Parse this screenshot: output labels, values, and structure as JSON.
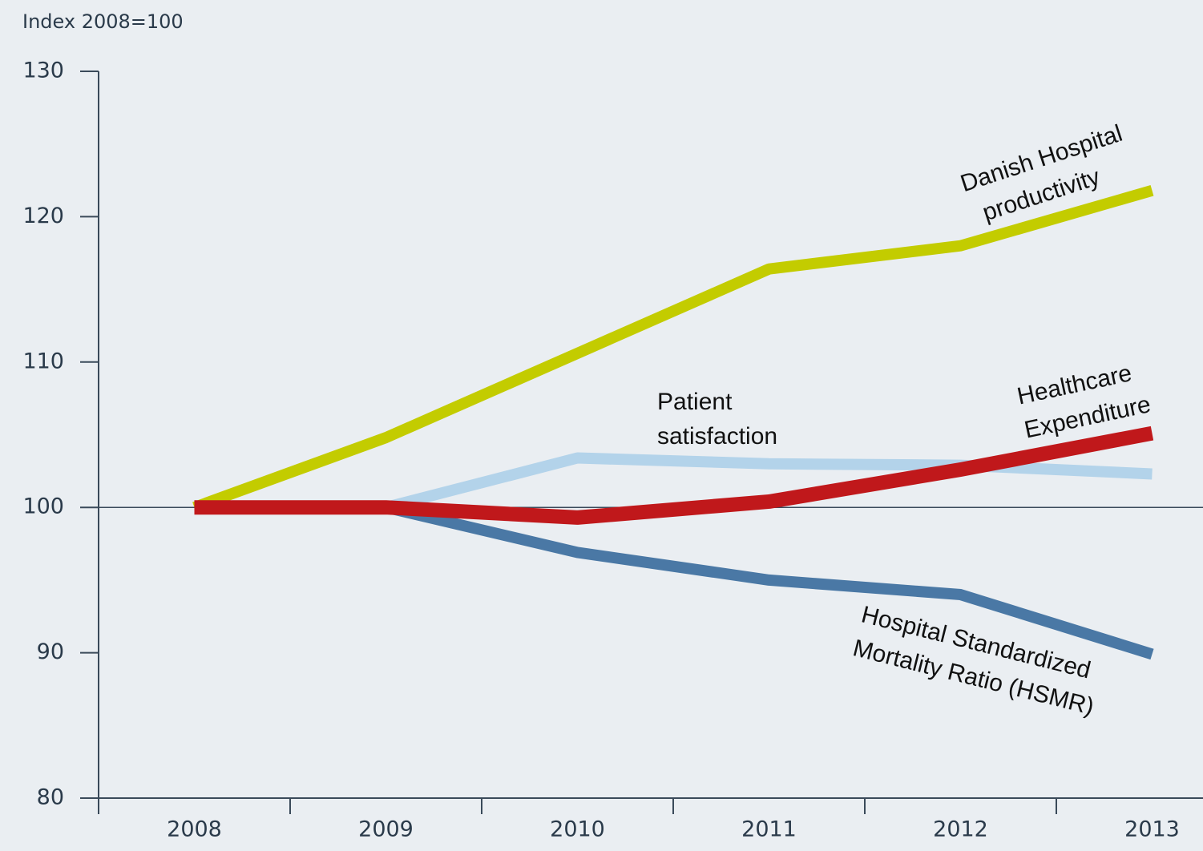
{
  "chart_data": {
    "type": "line",
    "y_axis_label": "Index 2008=100",
    "categories": [
      "2008",
      "2009",
      "2010",
      "2011",
      "2012",
      "2013"
    ],
    "series": [
      {
        "name": "Patient satisfaction",
        "color": "#b3d3ea",
        "values": [
          100,
          100,
          103.4,
          103,
          102.9,
          102.3
        ]
      },
      {
        "name": "Danish Hospital productivity",
        "color": "#c3cc00",
        "values": [
          100,
          104.8,
          110.6,
          116.4,
          118,
          121.8
        ]
      },
      {
        "name": "Hospital Standardized Mortality Ratio (HSMR)",
        "color": "#4a78a5",
        "values": [
          100,
          100,
          96.9,
          95,
          94,
          89.9
        ]
      },
      {
        "name": "Healthcare Expenditure",
        "color": "#c0181b",
        "values": [
          100,
          100,
          99.3,
          100.4,
          102.6,
          105.1
        ]
      }
    ],
    "annotations": [
      [
        "Patient",
        "satisfaction"
      ],
      [
        "Danish Hospital",
        "productivity"
      ],
      [
        "Hospital Standardized",
        "Mortality Ratio (HSMR)"
      ],
      [
        "Healthcare",
        "Expenditure"
      ]
    ],
    "reference_line": 100,
    "ylim": [
      80,
      130
    ],
    "yticks": [
      80,
      90,
      100,
      110,
      120,
      130
    ]
  }
}
